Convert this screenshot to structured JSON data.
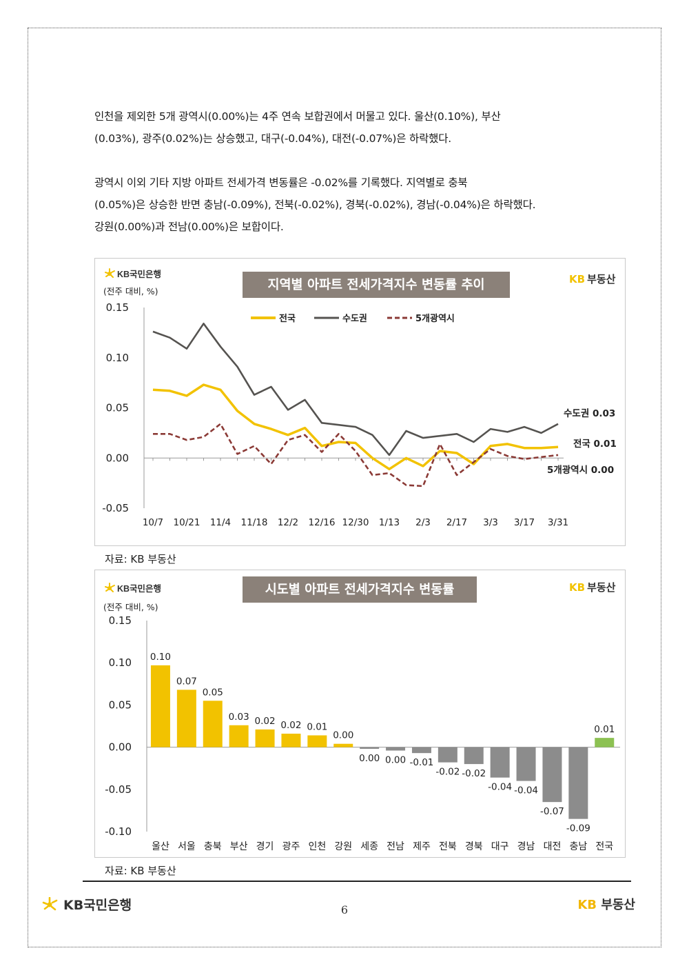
{
  "paragraphs": {
    "p1_line1": "인천을 제외한 5개 광역시(0.00%)는 4주 연속 보합권에서 머물고 있다. 울산(0.10%), 부산",
    "p1_line2": "(0.03%), 광주(0.02%)는 상승했고, 대구(-0.04%), 대전(-0.07%)은 하락했다.",
    "p2_line1": "광역시 이외 기타 지방 아파트 전세가격 변동률은 -0.02%를 기록했다. 지역별로 충북",
    "p2_line2": "(0.05%)은 상승한 반면 충남(-0.09%), 전북(-0.02%), 경북(-0.02%), 경남(-0.04%)은 하락했다.",
    "p2_line3": "강원(0.00%)과 전남(0.00%)은 보합이다."
  },
  "brand": {
    "kb_bank": "KB국민은행",
    "kb_realestate_kb": "KB",
    "kb_realestate_text": "부동산",
    "yellow": "#F2C200",
    "gray_title_bg": "#8B8179",
    "dark_line": "#555350",
    "dashed_line": "#8B3A36",
    "bar_gray": "#8C8C8C",
    "bar_green": "#8CC152"
  },
  "chart_data": [
    {
      "type": "line",
      "title": "지역별 아파트 전세가격지수 변동률 추이",
      "ylabel": "(전주 대비, %)",
      "ylim": [
        -0.05,
        0.15
      ],
      "yticks": [
        "0.15",
        "0.10",
        "0.05",
        "0.00",
        "-0.05"
      ],
      "ytick_values": [
        0.15,
        0.1,
        0.05,
        0.0,
        -0.05
      ],
      "xtick_labels": [
        "10/7",
        "10/21",
        "11/4",
        "11/18",
        "12/2",
        "12/16",
        "12/30",
        "1/13",
        "2/3",
        "2/17",
        "3/3",
        "3/17",
        "3/31"
      ],
      "xtick_indices": [
        0,
        2,
        4,
        6,
        8,
        10,
        12,
        14,
        16,
        18,
        20,
        22,
        24
      ],
      "n_points": 25,
      "series": [
        {
          "name": "전국",
          "style": "solid-yellow",
          "end_label": "전국 0.01",
          "values": [
            0.068,
            0.067,
            0.062,
            0.073,
            0.068,
            0.047,
            0.034,
            0.029,
            0.023,
            0.03,
            0.012,
            0.016,
            0.015,
            0.0,
            -0.011,
            0.0,
            -0.008,
            0.007,
            0.005,
            -0.006,
            0.012,
            0.014,
            0.01,
            0.01,
            0.011
          ]
        },
        {
          "name": "수도권",
          "style": "solid-dark",
          "end_label": "수도권 0.03",
          "values": [
            0.126,
            0.12,
            0.109,
            0.134,
            0.111,
            0.091,
            0.063,
            0.071,
            0.048,
            0.058,
            0.035,
            0.033,
            0.031,
            0.023,
            0.003,
            0.027,
            0.02,
            0.022,
            0.024,
            0.016,
            0.029,
            0.026,
            0.031,
            0.025,
            0.034
          ]
        },
        {
          "name": "5개광역시",
          "style": "dashed-brown",
          "end_label": "5개광역시 0.00",
          "values": [
            0.024,
            0.024,
            0.018,
            0.021,
            0.034,
            0.004,
            0.012,
            -0.006,
            0.018,
            0.023,
            0.006,
            0.024,
            0.007,
            -0.017,
            -0.015,
            -0.027,
            -0.028,
            0.014,
            -0.017,
            -0.004,
            0.009,
            0.002,
            -0.001,
            0.001,
            0.003
          ]
        }
      ],
      "source": "자료: KB 부동산"
    },
    {
      "type": "bar",
      "title": "시도별 아파트 전세가격지수 변동률",
      "ylabel": "(전주 대비, %)",
      "ylim": [
        -0.1,
        0.15
      ],
      "yticks": [
        "0.15",
        "0.10",
        "0.05",
        "0.00",
        "-0.05",
        "-0.10"
      ],
      "ytick_values": [
        0.15,
        0.1,
        0.05,
        0.0,
        -0.05,
        -0.1
      ],
      "categories": [
        "울산",
        "서울",
        "충북",
        "부산",
        "경기",
        "광주",
        "인천",
        "강원",
        "세종",
        "전남",
        "제주",
        "전북",
        "경북",
        "대구",
        "경남",
        "대전",
        "충남",
        "전국"
      ],
      "values": [
        0.097,
        0.068,
        0.055,
        0.026,
        0.021,
        0.016,
        0.014,
        0.004,
        -0.002,
        -0.004,
        -0.007,
        -0.018,
        -0.02,
        -0.036,
        -0.04,
        -0.065,
        -0.085,
        0.011
      ],
      "labels": [
        "0.10",
        "0.07",
        "0.05",
        "0.03",
        "0.02",
        "0.02",
        "0.01",
        "0.00",
        "0.00",
        "0.00",
        "-0.01",
        "-0.02",
        "-0.02",
        "-0.04",
        "-0.04",
        "-0.07",
        "-0.09",
        "0.01"
      ],
      "colors": [
        "yellow",
        "yellow",
        "yellow",
        "yellow",
        "yellow",
        "yellow",
        "yellow",
        "yellow",
        "gray",
        "gray",
        "gray",
        "gray",
        "gray",
        "gray",
        "gray",
        "gray",
        "gray",
        "green"
      ],
      "source": "자료: KB 부동산"
    }
  ],
  "footer": {
    "page_number": "6"
  }
}
